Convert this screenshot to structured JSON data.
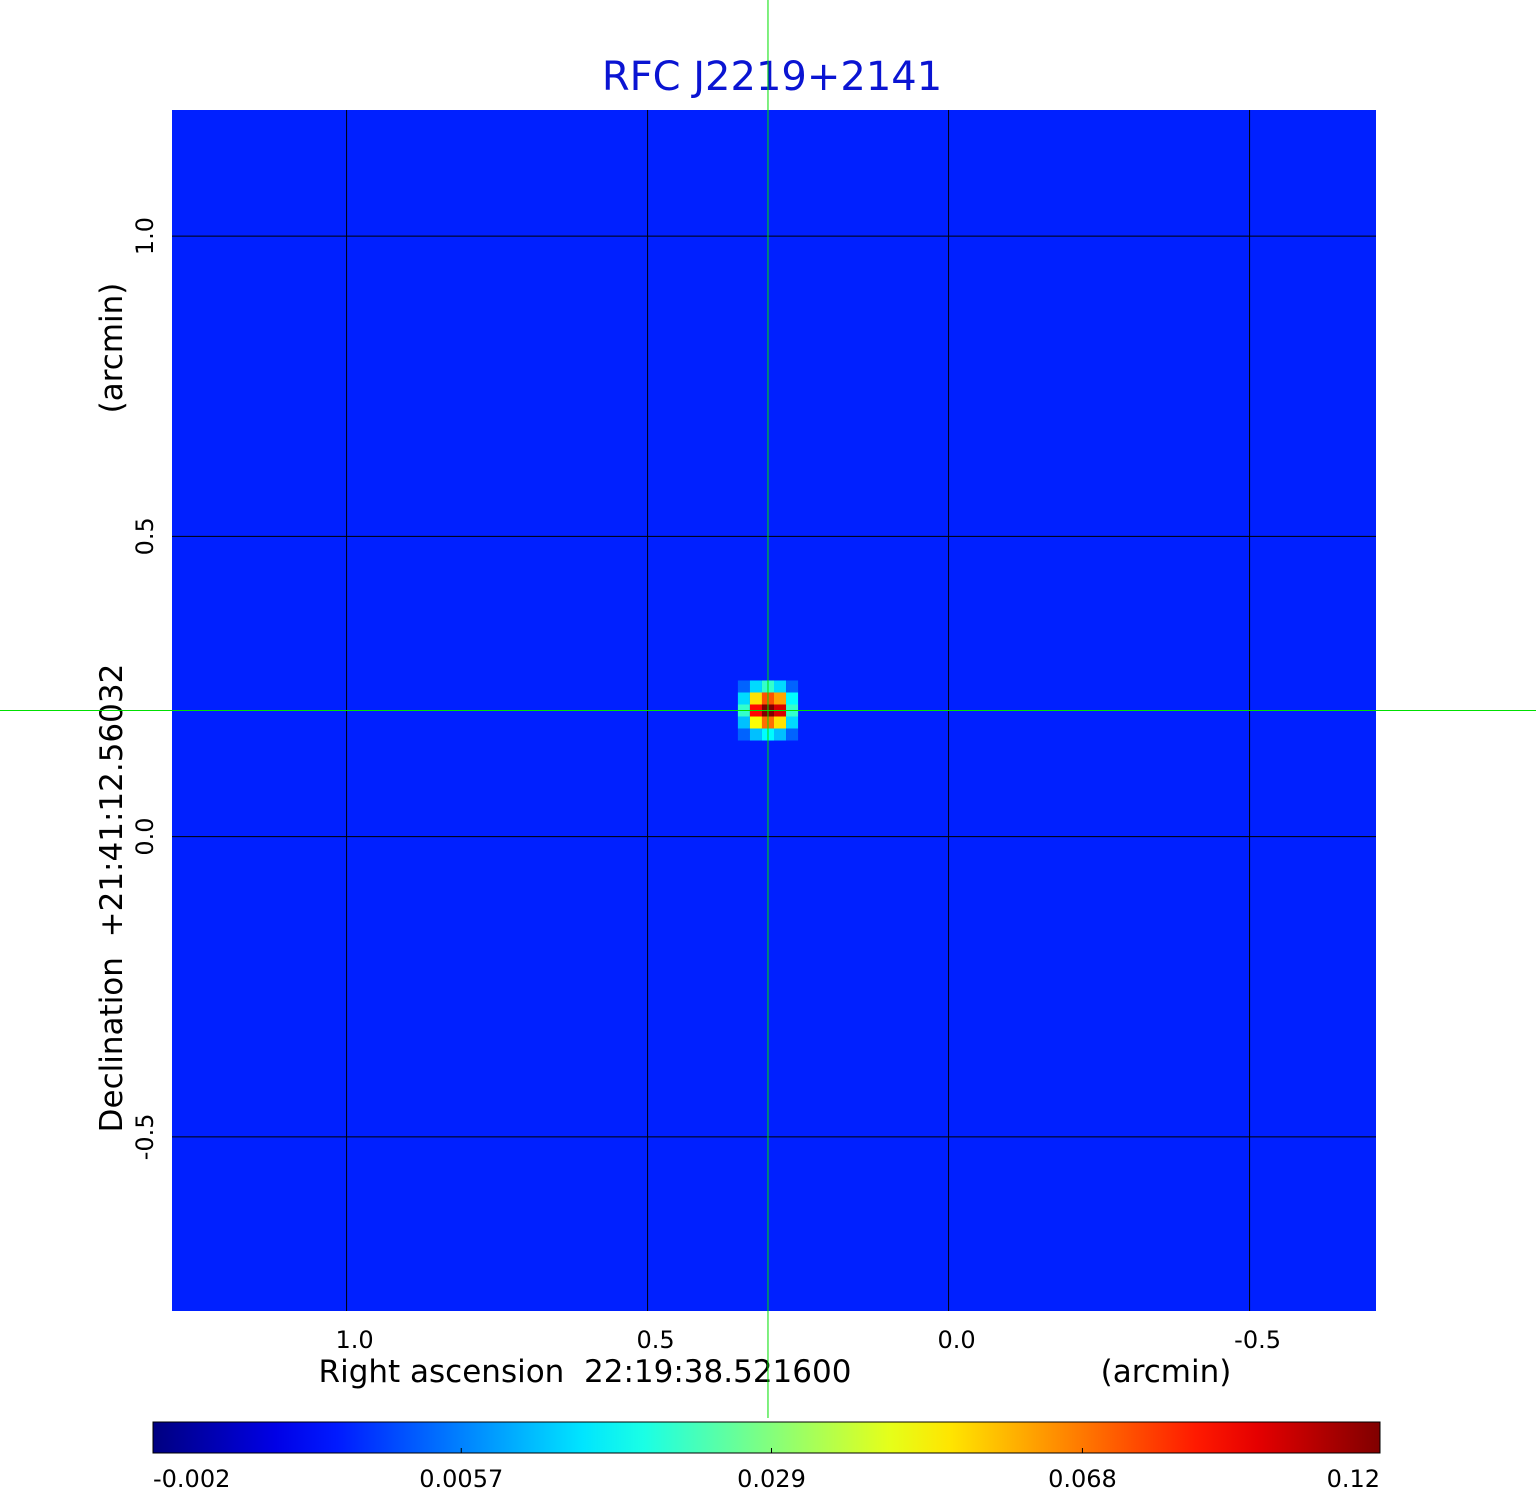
{
  "chart_data": {
    "type": "image",
    "title": "RFC J2219+2141",
    "x_label": "Right ascension  22:19:38.521600",
    "x_unit": "(arcmin)",
    "y_label": "Declination  +21:41:12.56032",
    "y_unit": "(arcmin)",
    "xlim": [
      1.29,
      -0.71
    ],
    "ylim": [
      -0.79,
      1.21
    ],
    "xticks": [
      {
        "value": 1,
        "label": "1.0"
      },
      0.5,
      {
        "value": 0,
        "label": "0.0"
      },
      -0.5
    ],
    "yticks": [
      -0.5,
      {
        "value": 0,
        "label": "0.0"
      },
      0.5,
      {
        "value": 1,
        "label": "1.0"
      }
    ],
    "grid": true,
    "grid_color": "#000000",
    "colormap": "jet",
    "background_value": 0.001,
    "source": {
      "x": 0.3,
      "y": 0.21,
      "pixel_size": 0.02,
      "values": [
        [
          0.004,
          0.012,
          0.02,
          0.012,
          0.004
        ],
        [
          0.012,
          0.05,
          0.075,
          0.06,
          0.015
        ],
        [
          0.02,
          0.09,
          0.12,
          0.1,
          0.02
        ],
        [
          0.01,
          0.045,
          0.07,
          0.05,
          0.012
        ],
        [
          0.004,
          0.01,
          0.015,
          0.01,
          0.004
        ]
      ]
    },
    "crosshair": {
      "x": 0.3,
      "y": 0.21,
      "color": "#00e000"
    },
    "colorbar": {
      "lim": [
        -0.002,
        0.12
      ],
      "scale": "sqrt",
      "ticks": [
        -0.002,
        0.0057,
        0.029,
        0.068,
        0.12
      ]
    }
  }
}
